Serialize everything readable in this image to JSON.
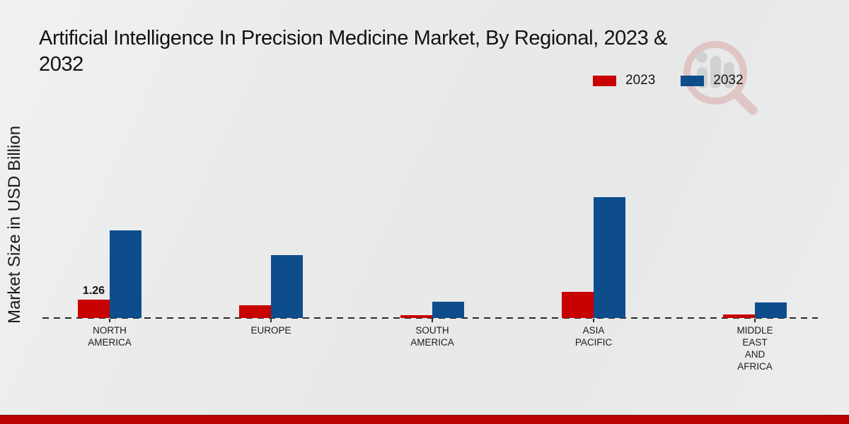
{
  "header": {
    "title_lines": [
      "Artificial Intelligence In Precision Medicine Market, By Regional, 2023 &",
      "2032"
    ]
  },
  "watermark": {
    "icon": "magnifier-bars-logo",
    "ring_color": "#d9a3a3",
    "bars_color": "#b7babd"
  },
  "chart_data": {
    "type": "bar",
    "title": "Artificial Intelligence In Precision Medicine Market, By Regional, 2023 & 2032",
    "xlabel": "",
    "ylabel": "Market Size in USD Billion",
    "categories": [
      "NORTH\nAMERICA",
      "EUROPE",
      "SOUTH\nAMERICA",
      "ASIA\nPACIFIC",
      "MIDDLE\nEAST\nAND\nAFRICA"
    ],
    "series": [
      {
        "name": "2023",
        "color": "#c80101",
        "values": [
          1.26,
          0.87,
          0.19,
          1.78,
          0.24
        ]
      },
      {
        "name": "2032",
        "color": "#0d4d8c",
        "values": [
          6.0,
          4.3,
          1.1,
          8.3,
          1.07
        ]
      }
    ],
    "data_labels": [
      {
        "category_index": 0,
        "series_index": 0,
        "text": "1.26"
      }
    ],
    "ylim": [
      0,
      8.5
    ],
    "grid": false,
    "legend_position": "top-right",
    "baseline_style": "dashed",
    "accent_band_color": "#ba0202"
  }
}
